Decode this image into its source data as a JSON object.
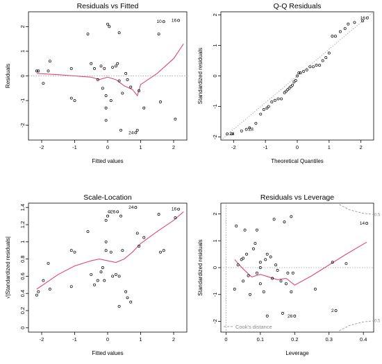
{
  "chart_data": [
    {
      "type": "scatter",
      "title": "Residuals vs Fitted",
      "xlabel": "Fitted values",
      "ylabel": "Residuals",
      "xlim": [
        -2.4,
        2.4
      ],
      "ylim": [
        -2.6,
        2.6
      ],
      "xticks": [
        -2,
        -1,
        0,
        1,
        2
      ],
      "yticks": [
        -2,
        -1,
        0,
        1,
        2
      ],
      "refline": {
        "type": "hline",
        "value": 0,
        "style": "dotted",
        "color": "#9a9a9a"
      },
      "points": [
        [
          -2.15,
          0.2
        ],
        [
          -2.1,
          0.2
        ],
        [
          -1.95,
          -0.3
        ],
        [
          -1.8,
          0.2
        ],
        [
          -1.75,
          0.6
        ],
        [
          -1.1,
          0.3
        ],
        [
          -1.1,
          -0.9
        ],
        [
          -1.0,
          -1.0
        ],
        [
          -0.6,
          1.7
        ],
        [
          -0.5,
          0.5
        ],
        [
          -0.4,
          0.3
        ],
        [
          -0.3,
          -0.15
        ],
        [
          -0.2,
          0.4
        ],
        [
          -0.15,
          -0.5
        ],
        [
          -0.1,
          0.3
        ],
        [
          -0.05,
          -0.8
        ],
        [
          -0.05,
          -1.3
        ],
        [
          -0.05,
          -1.8
        ],
        [
          0.0,
          2.1
        ],
        [
          0.05,
          2.0
        ],
        [
          0.1,
          -1.0
        ],
        [
          0.15,
          0.35
        ],
        [
          0.25,
          0.4
        ],
        [
          0.3,
          0.5
        ],
        [
          0.35,
          1.75
        ],
        [
          0.35,
          -0.2
        ],
        [
          0.4,
          -2.2
        ],
        [
          0.45,
          -0.7
        ],
        [
          0.55,
          0.1
        ],
        [
          0.6,
          -0.15
        ],
        [
          0.7,
          -0.45
        ],
        [
          0.85,
          -2.3
        ],
        [
          0.9,
          -2.2
        ],
        [
          0.95,
          -0.6
        ],
        [
          1.1,
          -1.3
        ],
        [
          1.55,
          1.7
        ],
        [
          1.6,
          -1.05
        ],
        [
          1.7,
          2.2
        ],
        [
          2.05,
          -1.75
        ],
        [
          2.15,
          2.25
        ]
      ],
      "smoother": [
        [
          -2.15,
          0.1
        ],
        [
          -1.5,
          0.05
        ],
        [
          -1.0,
          0.0
        ],
        [
          -0.5,
          -0.05
        ],
        [
          -0.25,
          -0.15
        ],
        [
          0.0,
          -0.05
        ],
        [
          0.25,
          -0.15
        ],
        [
          0.5,
          -0.4
        ],
        [
          0.75,
          -0.55
        ],
        [
          0.9,
          -0.8
        ],
        [
          1.0,
          -0.35
        ],
        [
          1.5,
          0.1
        ],
        [
          2.0,
          0.7
        ],
        [
          2.3,
          1.3
        ]
      ],
      "annotations": [
        {
          "x": 1.7,
          "y": 2.2,
          "label": "10"
        },
        {
          "x": 2.15,
          "y": 2.25,
          "label": "16"
        },
        {
          "x": 0.85,
          "y": -2.3,
          "label": "24"
        }
      ],
      "annotation_side": "left",
      "colors": {
        "points": "#000000",
        "smoother": "#e0457b",
        "refline": "#9a9a9a"
      }
    },
    {
      "type": "scatter",
      "title": "Q-Q Residuals",
      "xlabel": "Theoretical Quantiles",
      "ylabel": "Standardized residuals",
      "xlim": [
        -2.4,
        2.4
      ],
      "ylim": [
        -2.1,
        2.1
      ],
      "xticks": [
        -2,
        -1,
        0,
        1,
        2
      ],
      "yticks": [
        -2,
        -1,
        0,
        1,
        2
      ],
      "refline": {
        "type": "line",
        "from": [
          -2.4,
          -2.1
        ],
        "to": [
          2.4,
          2.1
        ],
        "style": "dotted",
        "color": "#9a9a9a"
      },
      "points": [
        [
          -2.2,
          -1.9
        ],
        [
          -2.05,
          -1.9
        ],
        [
          -1.75,
          -1.8
        ],
        [
          -1.6,
          -1.75
        ],
        [
          -1.5,
          -1.7
        ],
        [
          -1.3,
          -1.55
        ],
        [
          -1.15,
          -1.25
        ],
        [
          -1.05,
          -1.1
        ],
        [
          -0.95,
          -1.05
        ],
        [
          -0.9,
          -1.0
        ],
        [
          -0.8,
          -0.85
        ],
        [
          -0.7,
          -0.8
        ],
        [
          -0.6,
          -0.75
        ],
        [
          -0.5,
          -0.75
        ],
        [
          -0.4,
          -0.55
        ],
        [
          -0.35,
          -0.5
        ],
        [
          -0.3,
          -0.45
        ],
        [
          -0.25,
          -0.4
        ],
        [
          -0.2,
          -0.35
        ],
        [
          -0.15,
          -0.3
        ],
        [
          -0.1,
          -0.2
        ],
        [
          -0.05,
          -0.15
        ],
        [
          0.0,
          0.0
        ],
        [
          0.05,
          0.1
        ],
        [
          0.1,
          0.1
        ],
        [
          0.2,
          0.15
        ],
        [
          0.3,
          0.2
        ],
        [
          0.4,
          0.3
        ],
        [
          0.5,
          0.3
        ],
        [
          0.6,
          0.35
        ],
        [
          0.7,
          0.35
        ],
        [
          0.8,
          0.5
        ],
        [
          0.9,
          0.6
        ],
        [
          1.0,
          0.75
        ],
        [
          1.1,
          1.3
        ],
        [
          1.2,
          1.3
        ],
        [
          1.35,
          1.45
        ],
        [
          1.5,
          1.55
        ],
        [
          1.6,
          1.7
        ],
        [
          1.8,
          1.75
        ],
        [
          2.05,
          1.8
        ],
        [
          2.2,
          1.9
        ]
      ],
      "annotations": [
        {
          "x": -2.2,
          "y": -1.9,
          "label": "24"
        },
        {
          "x": -1.6,
          "y": -1.75,
          "label": "28"
        },
        {
          "x": 2.2,
          "y": 1.9,
          "label": "16"
        }
      ],
      "annotation_side": "mixed",
      "colors": {
        "points": "#000000",
        "refline": "#9a9a9a"
      }
    },
    {
      "type": "scatter",
      "title": "Scale-Location",
      "xlabel": "Fitted values",
      "ylabel": "√|Standardized residuals|",
      "xlim": [
        -2.4,
        2.4
      ],
      "ylim": [
        -0.05,
        1.45
      ],
      "xticks": [
        -2,
        -1,
        0,
        1,
        2
      ],
      "yticks": [
        0.0,
        0.2,
        0.4,
        0.6,
        0.8,
        1.0,
        1.2,
        1.4
      ],
      "points": [
        [
          -2.15,
          0.38
        ],
        [
          -2.1,
          0.42
        ],
        [
          -1.95,
          0.55
        ],
        [
          -1.8,
          0.75
        ],
        [
          -1.75,
          0.45
        ],
        [
          -1.1,
          0.9
        ],
        [
          -1.1,
          0.48
        ],
        [
          -1.0,
          0.88
        ],
        [
          -0.6,
          1.12
        ],
        [
          -0.5,
          0.62
        ],
        [
          -0.4,
          0.5
        ],
        [
          -0.3,
          0.55
        ],
        [
          -0.2,
          0.65
        ],
        [
          -0.15,
          0.7
        ],
        [
          -0.1,
          0.55
        ],
        [
          -0.05,
          0.9
        ],
        [
          -0.05,
          1.0
        ],
        [
          -0.05,
          1.25
        ],
        [
          0.0,
          1.3
        ],
        [
          0.05,
          1.35
        ],
        [
          0.1,
          0.88
        ],
        [
          0.15,
          0.6
        ],
        [
          0.25,
          0.62
        ],
        [
          0.3,
          1.35
        ],
        [
          0.35,
          0.25
        ],
        [
          0.35,
          0.6
        ],
        [
          0.4,
          1.3
        ],
        [
          0.45,
          0.9
        ],
        [
          0.55,
          0.42
        ],
        [
          0.6,
          0.35
        ],
        [
          0.7,
          0.3
        ],
        [
          0.85,
          1.4
        ],
        [
          0.9,
          1.1
        ],
        [
          0.95,
          0.95
        ],
        [
          1.1,
          1.05
        ],
        [
          1.55,
          1.32
        ],
        [
          1.6,
          0.88
        ],
        [
          1.7,
          0.9
        ],
        [
          2.05,
          1.28
        ],
        [
          2.15,
          1.38
        ]
      ],
      "smoother": [
        [
          -2.15,
          0.45
        ],
        [
          -1.5,
          0.62
        ],
        [
          -1.0,
          0.72
        ],
        [
          -0.5,
          0.78
        ],
        [
          -0.25,
          0.8
        ],
        [
          0.0,
          0.78
        ],
        [
          0.25,
          0.76
        ],
        [
          0.5,
          0.8
        ],
        [
          0.75,
          0.88
        ],
        [
          1.0,
          0.98
        ],
        [
          1.5,
          1.12
        ],
        [
          2.0,
          1.25
        ],
        [
          2.3,
          1.35
        ]
      ],
      "annotations": [
        {
          "x": 0.3,
          "y": 1.35,
          "label": "26"
        },
        {
          "x": 0.85,
          "y": 1.4,
          "label": "24"
        },
        {
          "x": 2.15,
          "y": 1.38,
          "label": "16"
        }
      ],
      "annotation_side": "left",
      "colors": {
        "points": "#000000",
        "smoother": "#e0457b"
      }
    },
    {
      "type": "scatter",
      "title": "Residuals vs Leverage",
      "xlabel": "Leverage",
      "ylabel": "Standardized residuals",
      "xlim": [
        -0.015,
        0.43
      ],
      "ylim": [
        -2.4,
        2.4
      ],
      "xticks": [
        0.0,
        0.1,
        0.2,
        0.3,
        0.4
      ],
      "yticks": [
        -2,
        -1,
        0,
        1,
        2
      ],
      "refline": {
        "type": "hline",
        "value": 0,
        "style": "dotted",
        "color": "#9a9a9a"
      },
      "vline": {
        "value": 0,
        "style": "dotted",
        "color": "#9a9a9a"
      },
      "points": [
        [
          0.025,
          -0.8
        ],
        [
          0.03,
          1.55
        ],
        [
          0.035,
          0.1
        ],
        [
          0.045,
          0.3
        ],
        [
          0.05,
          0.35
        ],
        [
          0.05,
          -0.5
        ],
        [
          0.055,
          1.4
        ],
        [
          0.06,
          0.5
        ],
        [
          0.065,
          -0.3
        ],
        [
          0.07,
          -1.0
        ],
        [
          0.08,
          0.7
        ],
        [
          0.085,
          0.9
        ],
        [
          0.09,
          1.4
        ],
        [
          0.09,
          -0.2
        ],
        [
          0.1,
          0.0
        ],
        [
          0.1,
          0.2
        ],
        [
          0.1,
          -0.6
        ],
        [
          0.11,
          -0.9
        ],
        [
          0.115,
          0.3
        ],
        [
          0.12,
          0.5
        ],
        [
          0.12,
          -1.8
        ],
        [
          0.13,
          0.4
        ],
        [
          0.135,
          -0.4
        ],
        [
          0.14,
          1.8
        ],
        [
          0.145,
          0.1
        ],
        [
          0.15,
          -0.1
        ],
        [
          0.16,
          -0.5
        ],
        [
          0.165,
          -1.7
        ],
        [
          0.17,
          1.7
        ],
        [
          0.175,
          -0.6
        ],
        [
          0.18,
          -0.2
        ],
        [
          0.19,
          1.9
        ],
        [
          0.19,
          -0.9
        ],
        [
          0.195,
          -0.2
        ],
        [
          0.2,
          -1.8
        ],
        [
          0.26,
          -0.8
        ],
        [
          0.31,
          0.2
        ],
        [
          0.32,
          -1.6
        ],
        [
          0.35,
          0.15
        ],
        [
          0.41,
          1.65
        ]
      ],
      "smoother": [
        [
          0.025,
          0.3
        ],
        [
          0.05,
          -0.05
        ],
        [
          0.075,
          -0.35
        ],
        [
          0.1,
          -0.25
        ],
        [
          0.125,
          -0.35
        ],
        [
          0.15,
          -0.45
        ],
        [
          0.175,
          -0.4
        ],
        [
          0.2,
          -0.65
        ],
        [
          0.25,
          -0.3
        ],
        [
          0.3,
          0.1
        ],
        [
          0.35,
          0.5
        ],
        [
          0.41,
          0.95
        ]
      ],
      "cooks_distance": {
        "color": "#9a9a9a",
        "style": "dashed",
        "upper": [
          [
            0.33,
            2.35
          ],
          [
            0.36,
            2.15
          ],
          [
            0.4,
            2.02
          ],
          [
            0.43,
            1.98
          ]
        ],
        "lower": [
          [
            0.33,
            -2.35
          ],
          [
            0.36,
            -2.15
          ],
          [
            0.4,
            -2.02
          ],
          [
            0.43,
            -1.98
          ]
        ],
        "contour_labels": [
          {
            "x": 0.43,
            "y": 1.98,
            "label": "0.5"
          },
          {
            "x": 0.43,
            "y": -1.98,
            "label": "0.5"
          }
        ]
      },
      "legend": {
        "label": "Cook's distance",
        "position": "bottom-left",
        "line_style": "dashed",
        "color": "#9a9a9a"
      },
      "annotations": [
        {
          "x": 0.41,
          "y": 1.65,
          "label": "14"
        },
        {
          "x": 0.2,
          "y": -1.8,
          "label": "26"
        },
        {
          "x": 0.32,
          "y": -1.6,
          "label": "2"
        }
      ],
      "annotation_side": "left",
      "colors": {
        "points": "#000000",
        "smoother": "#e0457b"
      }
    }
  ]
}
